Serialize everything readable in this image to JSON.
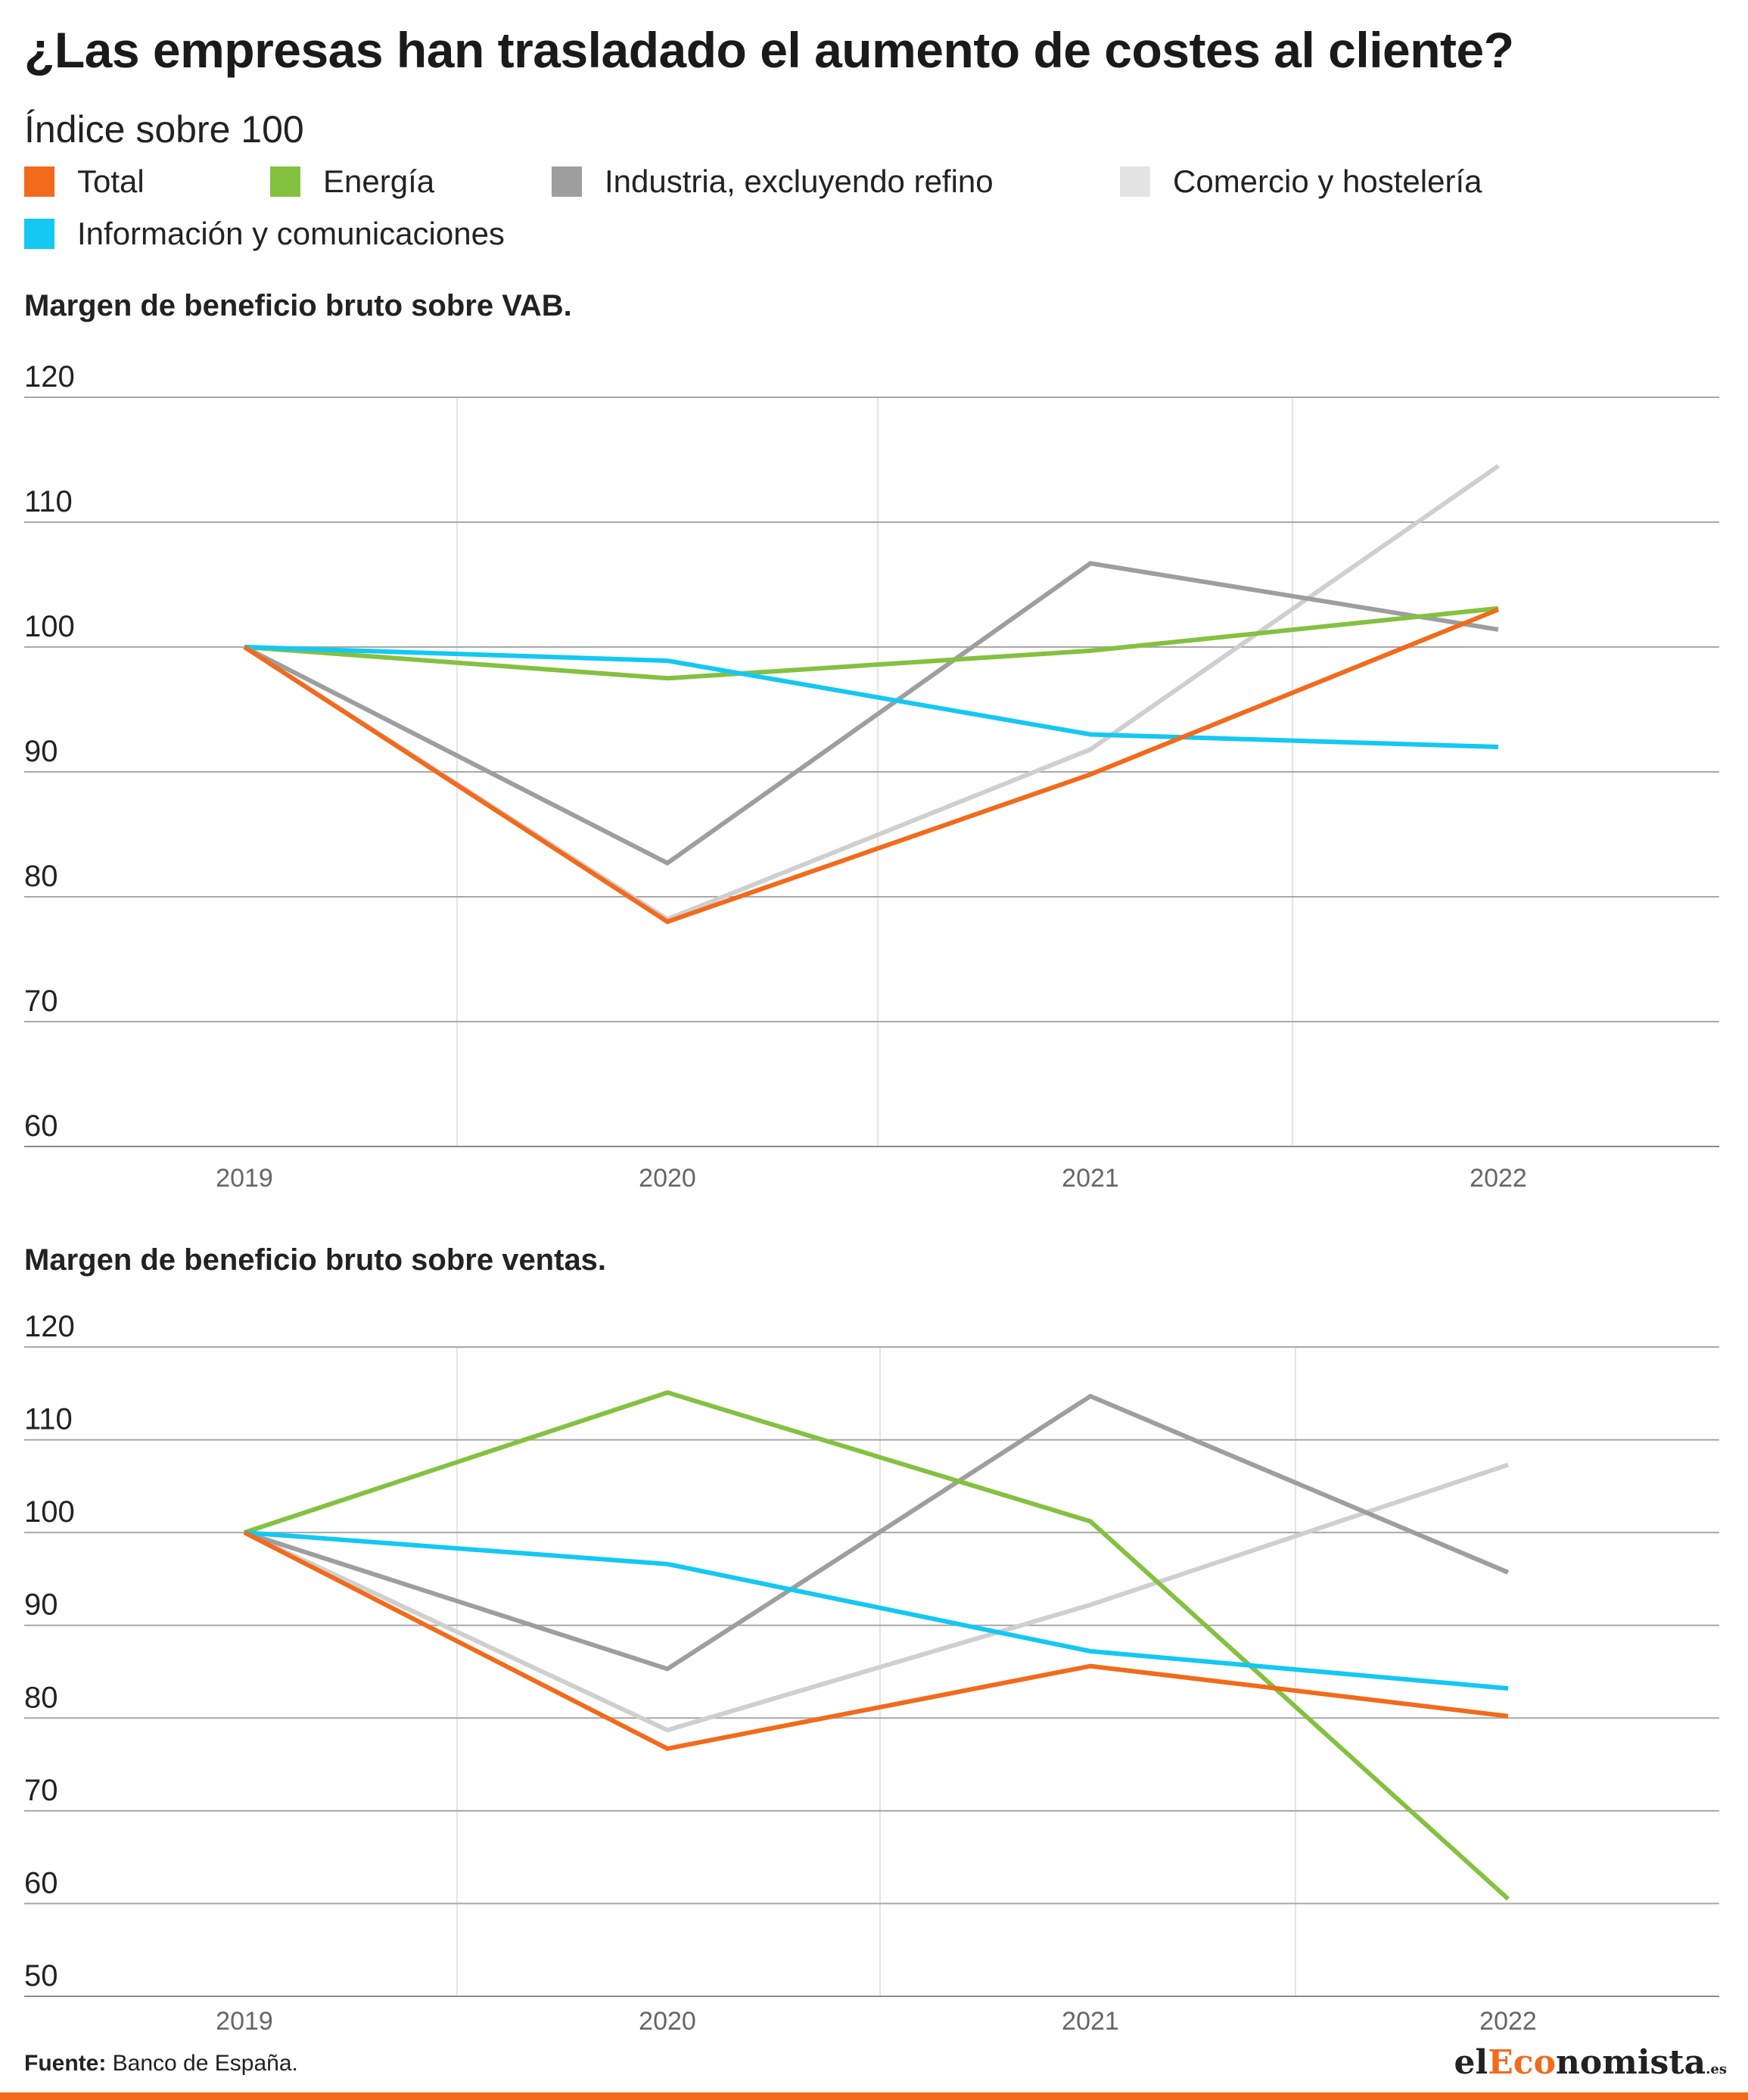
{
  "title": "¿Las empresas han trasladado el aumento de costes al cliente?",
  "subtitle": "Índice sobre 100",
  "legend": [
    {
      "label": "Total",
      "color": "#f26a1b"
    },
    {
      "label": "Energía",
      "color": "#84c140"
    },
    {
      "label": "Industria, excluyendo refino",
      "color": "#9e9e9e"
    },
    {
      "label": "Comercio y hostelería",
      "color": "#e3e3e3"
    },
    {
      "label": "Información y comunicaciones",
      "color": "#13c8f2"
    }
  ],
  "chart_data": [
    {
      "type": "line",
      "title": "Margen de beneficio bruto sobre VAB.",
      "x": [
        "2019",
        "2020",
        "2021",
        "2022"
      ],
      "yticks": [
        "120",
        "110",
        "100",
        "90",
        "80",
        "70",
        "60"
      ],
      "ylim": [
        60,
        120
      ],
      "grid": true,
      "series": [
        {
          "name": "Comercio y hostelería",
          "color": "#cfcfcf",
          "values": [
            100,
            78.2,
            91.8,
            114.5
          ]
        },
        {
          "name": "Industria, excluyendo refino",
          "color": "#9e9e9e",
          "values": [
            100,
            82.7,
            106.7,
            101.4
          ]
        },
        {
          "name": "Energía",
          "color": "#84c140",
          "values": [
            100,
            97.5,
            99.7,
            103.1
          ]
        },
        {
          "name": "Información y comunicaciones",
          "color": "#13c8f2",
          "values": [
            100,
            98.9,
            93.0,
            92.0
          ]
        },
        {
          "name": "Total",
          "color": "#f26a1b",
          "values": [
            100,
            78.0,
            89.8,
            103.0
          ]
        }
      ]
    },
    {
      "type": "line",
      "title": "Margen de beneficio bruto sobre ventas.",
      "x": [
        "2019",
        "2020",
        "2021",
        "2022"
      ],
      "yticks": [
        "120",
        "110",
        "100",
        "90",
        "80",
        "70",
        "60",
        "50"
      ],
      "ylim": [
        50,
        120
      ],
      "grid": true,
      "series": [
        {
          "name": "Comercio y hostelería",
          "color": "#cfcfcf",
          "values": [
            100,
            78.7,
            92.2,
            107.3
          ]
        },
        {
          "name": "Industria, excluyendo refino",
          "color": "#9e9e9e",
          "values": [
            100,
            85.3,
            114.7,
            95.7
          ]
        },
        {
          "name": "Energía",
          "color": "#84c140",
          "values": [
            100,
            115.1,
            101.2,
            60.5
          ]
        },
        {
          "name": "Información y comunicaciones",
          "color": "#13c8f2",
          "values": [
            100,
            96.6,
            87.2,
            83.2
          ]
        },
        {
          "name": "Total",
          "color": "#f26a1b",
          "values": [
            100,
            76.7,
            85.6,
            80.2
          ]
        }
      ]
    }
  ],
  "footer": {
    "source_label": "Fuente:",
    "source_text": " Banco de España."
  },
  "logo": {
    "part1": "el",
    "part2": "Eco",
    "part3": "nomista",
    "suffix": ".es"
  }
}
